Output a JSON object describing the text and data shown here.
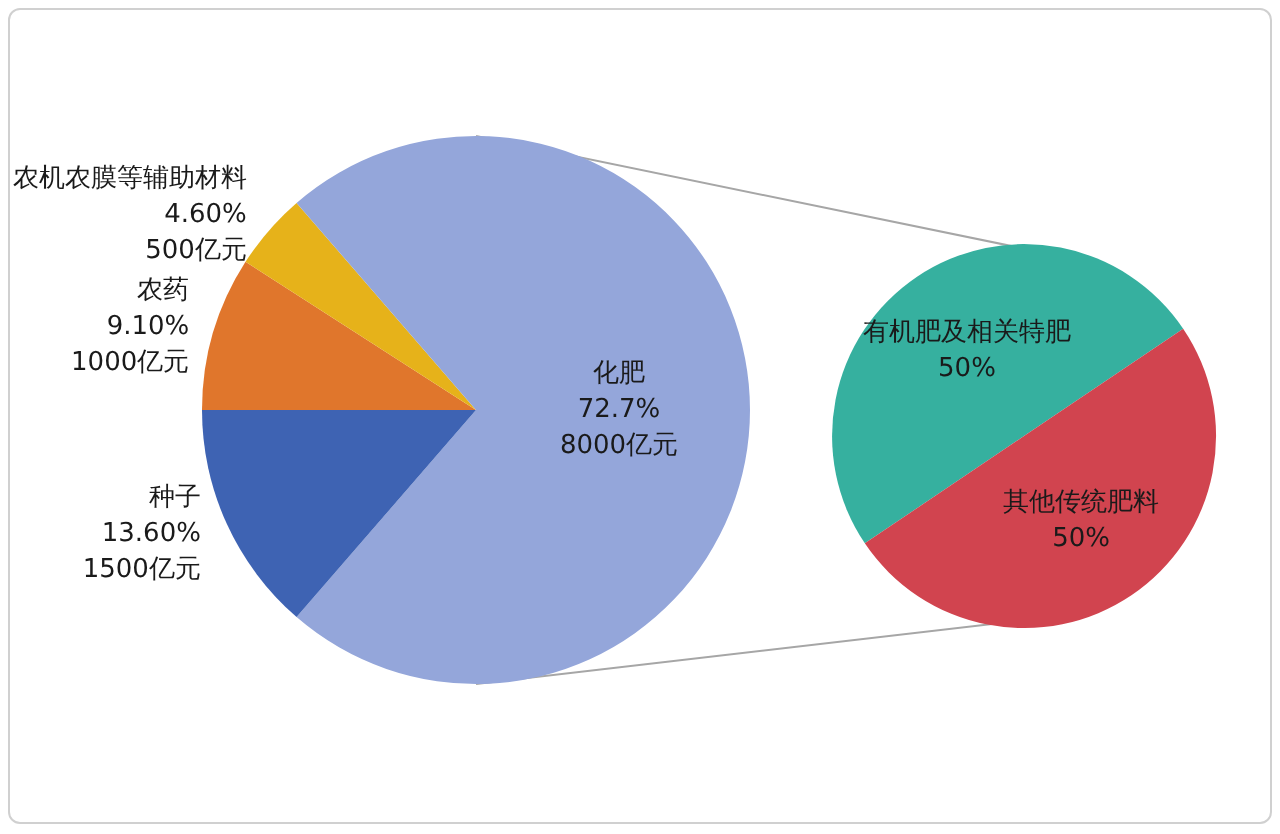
{
  "chart_data": [
    {
      "type": "pie",
      "categories": [
        "农药",
        "农机农膜等辅助材料",
        "化肥",
        "种子"
      ],
      "values": [
        1000,
        500,
        8000,
        1500
      ],
      "value_labels": [
        "9.10%\n1000亿元",
        "4.60%\n500亿元",
        "72.7%\n8000亿元",
        "13.60%\n1500亿元"
      ],
      "colors": [
        "#e0762c",
        "#e6b21a",
        "#94a6da",
        "#3e63b3"
      ]
    },
    {
      "type": "pie",
      "categories": [
        "有机肥及相关特肥",
        "其他传统肥料"
      ],
      "values": [
        50,
        50
      ],
      "value_labels": [
        "50%",
        "50%"
      ],
      "colors": [
        "#36b09f",
        "#d1444f"
      ]
    }
  ]
}
